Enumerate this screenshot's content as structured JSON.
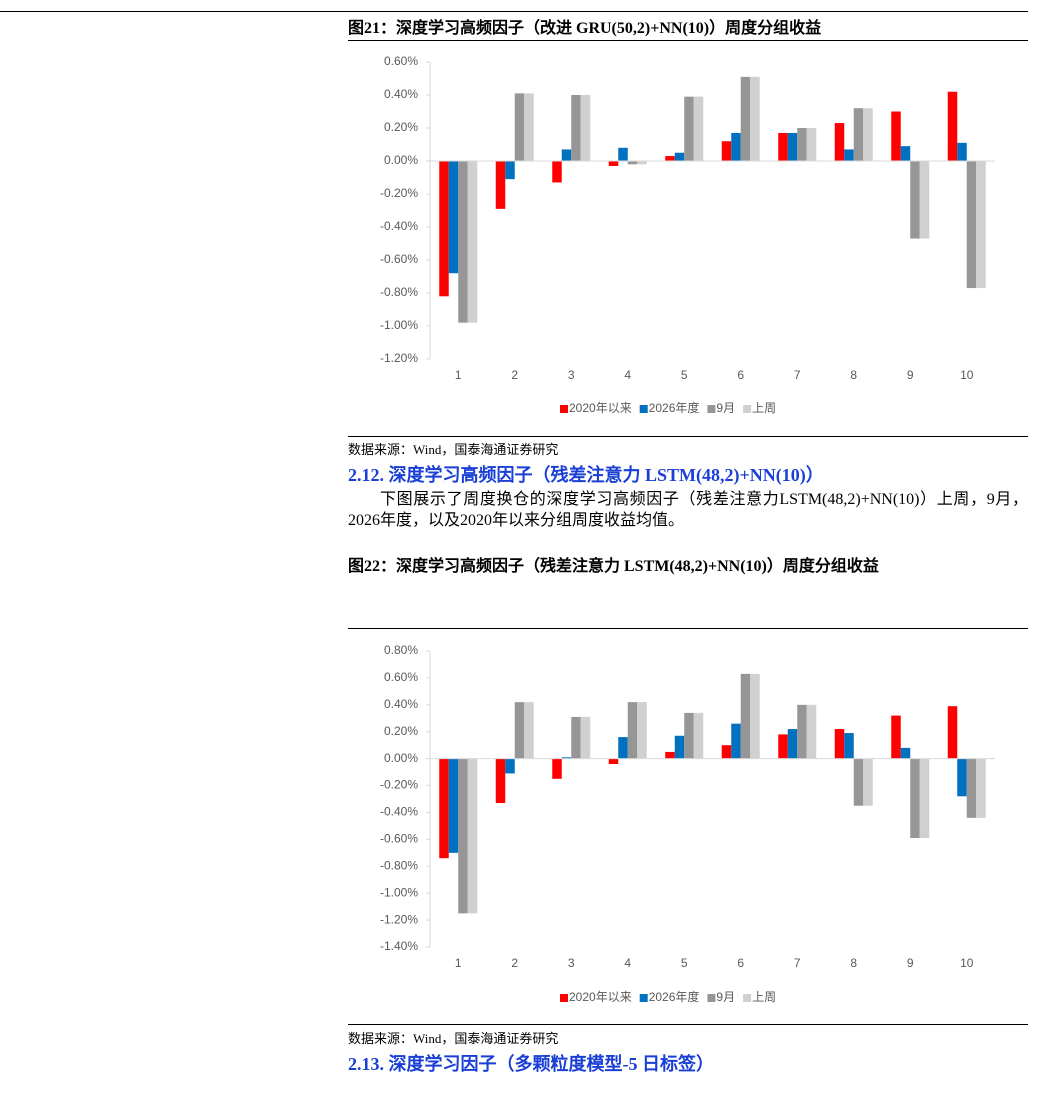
{
  "chart_data": [
    {
      "type": "bar",
      "title": "图21：深度学习高频因子（改进 GRU(50,2)+NN(10)）周度分组收益",
      "categories": [
        "1",
        "2",
        "3",
        "4",
        "5",
        "6",
        "7",
        "8",
        "9",
        "10"
      ],
      "series": [
        {
          "name": "2020年以来",
          "color": "#ff0000",
          "values": [
            -0.82,
            -0.29,
            -0.13,
            -0.03,
            0.03,
            0.12,
            0.17,
            0.23,
            0.3,
            0.42
          ]
        },
        {
          "name": "2026年度",
          "color": "#0070c0",
          "values": [
            -0.68,
            -0.11,
            0.07,
            0.08,
            0.05,
            0.17,
            0.17,
            0.07,
            0.09,
            0.11
          ]
        },
        {
          "name": "9月",
          "color": "#969696",
          "values": [
            -0.98,
            0.41,
            0.4,
            -0.02,
            0.39,
            0.51,
            0.2,
            0.32,
            -0.47,
            -0.77
          ]
        },
        {
          "name": "上周",
          "color": "#d0d0d0",
          "values": [
            -0.98,
            0.41,
            0.4,
            -0.02,
            0.39,
            0.51,
            0.2,
            0.32,
            -0.47,
            -0.77
          ]
        }
      ],
      "ylim": [
        -1.2,
        0.6
      ],
      "yticks": [
        {
          "value": 0.6,
          "label": "0.60%"
        },
        {
          "value": 0.4,
          "label": "0.40%"
        },
        {
          "value": 0.2,
          "label": "0.20%"
        },
        {
          "value": 0,
          "label": "0.00%"
        },
        {
          "value": -0.2,
          "label": "-0.20%"
        },
        {
          "value": -0.4,
          "label": "-0.40%"
        },
        {
          "value": -0.6,
          "label": "-0.60%"
        },
        {
          "value": -0.8,
          "label": "-0.80%"
        },
        {
          "value": -1.0,
          "label": "-1.00%"
        },
        {
          "value": -1.2,
          "label": "-1.20%"
        }
      ],
      "source": "数据来源：Wind，国泰海通证券研究"
    },
    {
      "type": "bar",
      "title": "图22：深度学习高频因子（残差注意力 LSTM(48,2)+NN(10)）周度分组收益",
      "categories": [
        "1",
        "2",
        "3",
        "4",
        "5",
        "6",
        "7",
        "8",
        "9",
        "10"
      ],
      "series": [
        {
          "name": "2020年以来",
          "color": "#ff0000",
          "values": [
            -0.74,
            -0.33,
            -0.15,
            -0.04,
            0.05,
            0.1,
            0.18,
            0.22,
            0.32,
            0.39
          ]
        },
        {
          "name": "2026年度",
          "color": "#0070c0",
          "values": [
            -0.7,
            -0.11,
            0.01,
            0.16,
            0.17,
            0.26,
            0.22,
            0.19,
            0.08,
            -0.28
          ]
        },
        {
          "name": "9月",
          "color": "#969696",
          "values": [
            -1.15,
            0.42,
            0.31,
            0.42,
            0.34,
            0.63,
            0.4,
            -0.35,
            -0.59,
            -0.44
          ]
        },
        {
          "name": "上周",
          "color": "#d0d0d0",
          "values": [
            -1.15,
            0.42,
            0.31,
            0.42,
            0.34,
            0.63,
            0.4,
            -0.35,
            -0.59,
            -0.44
          ]
        }
      ],
      "ylim": [
        -1.4,
        0.8
      ],
      "yticks": [
        {
          "value": 0.8,
          "label": "0.80%"
        },
        {
          "value": 0.6,
          "label": "0.60%"
        },
        {
          "value": 0.4,
          "label": "0.40%"
        },
        {
          "value": 0.2,
          "label": "0.20%"
        },
        {
          "value": 0,
          "label": "0.00%"
        },
        {
          "value": -0.2,
          "label": "-0.20%"
        },
        {
          "value": -0.4,
          "label": "-0.40%"
        },
        {
          "value": -0.6,
          "label": "-0.60%"
        },
        {
          "value": -0.8,
          "label": "-0.80%"
        },
        {
          "value": -1.0,
          "label": "-1.00%"
        },
        {
          "value": -1.2,
          "label": "-1.20%"
        },
        {
          "value": -1.4,
          "label": "-1.40%"
        }
      ],
      "source": "数据来源：Wind，国泰海通证券研究"
    }
  ],
  "sections": [
    {
      "heading": "2.12. 深度学习高频因子（残差注意力 LSTM(48,2)+NN(10)）",
      "paragraph": "下图展示了周度换仓的深度学习高频因子（残差注意力LSTM(48,2)+NN(10)）上周，9月，2026年度，以及2020年以来分组周度收益均值。"
    },
    {
      "heading": "2.13. 深度学习因子（多颗粒度模型-5 日标签）"
    }
  ]
}
